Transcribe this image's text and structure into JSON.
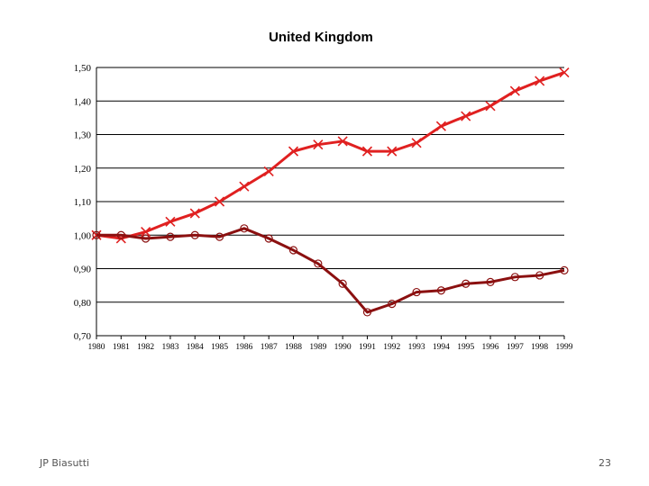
{
  "footer": {
    "author": "JP Biasutti",
    "page_number": "23"
  },
  "chart_data": {
    "type": "line",
    "title": "United Kingdom",
    "xlabel": "",
    "ylabel": "",
    "x": [
      1980,
      1981,
      1982,
      1983,
      1984,
      1985,
      1986,
      1987,
      1988,
      1989,
      1990,
      1991,
      1992,
      1993,
      1994,
      1995,
      1996,
      1997,
      1998,
      1999
    ],
    "ylim": [
      0.7,
      1.5
    ],
    "yticks": [
      "0,70",
      "0,80",
      "0,90",
      "1,00",
      "1,10",
      "1,20",
      "1,30",
      "1,40",
      "1,50"
    ],
    "grid": true,
    "series": [
      {
        "marker": "x",
        "color": "#e02020",
        "values": [
          1.0,
          0.99,
          1.01,
          1.04,
          1.065,
          1.1,
          1.145,
          1.19,
          1.25,
          1.27,
          1.28,
          1.25,
          1.25,
          1.275,
          1.325,
          1.355,
          1.385,
          1.43,
          1.46,
          1.485
        ]
      },
      {
        "marker": "o",
        "color": "#8b1010",
        "values": [
          1.0,
          1.0,
          0.99,
          0.995,
          1.0,
          0.995,
          1.02,
          0.99,
          0.955,
          0.915,
          0.855,
          0.77,
          0.795,
          0.83,
          0.835,
          0.855,
          0.86,
          0.875,
          0.88,
          0.895
        ]
      }
    ]
  }
}
